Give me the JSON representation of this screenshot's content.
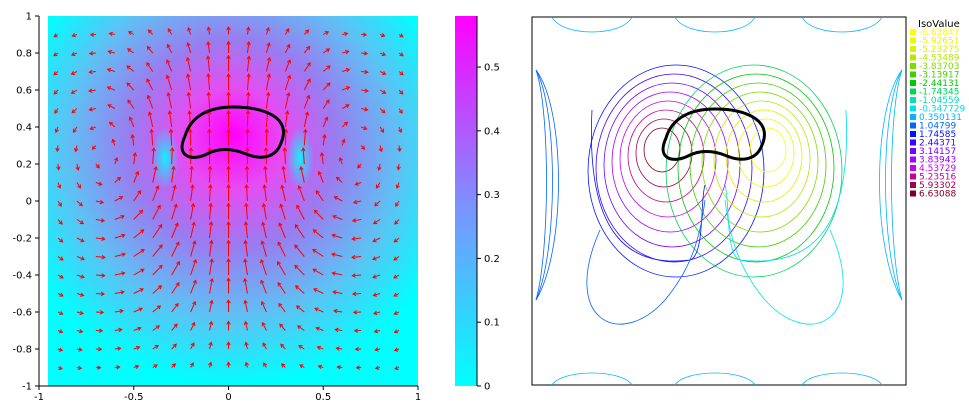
{
  "chart_data": [
    {
      "type": "heatmap",
      "title": "",
      "xlabel": "",
      "ylabel": "",
      "xlim": [
        -1,
        1
      ],
      "ylim": [
        -1,
        1
      ],
      "xticks": [
        "-1",
        "-0.5",
        "0",
        "0.5",
        "1"
      ],
      "yticks": [
        "1",
        "0.8",
        "0.6",
        "0.4",
        "0.2",
        "0",
        "-0.2",
        "-0.4",
        "-0.6",
        "-0.8",
        "-1"
      ],
      "colorbar": {
        "range": [
          0,
          0.58
        ],
        "ticks": [
          "0.5",
          "0.4",
          "0.3",
          "0.2",
          "0.1",
          "0"
        ],
        "colors": [
          "#00ffff",
          "#ff00ff"
        ]
      },
      "arrow_color": "#ff0000",
      "obstacle_color": "#000000",
      "grid": false
    },
    {
      "type": "contour",
      "title": "",
      "legend_placement": "right",
      "legend_title": "IsoValue",
      "levels": [
        {
          "label": "-6.62847",
          "color": "#ffff00"
        },
        {
          "label": "-5.92651",
          "color": "#f0f700"
        },
        {
          "label": "-5.23275",
          "color": "#dcf000"
        },
        {
          "label": "-4.53489",
          "color": "#b4e800"
        },
        {
          "label": "-3.83703",
          "color": "#7ddc00"
        },
        {
          "label": "-3.13917",
          "color": "#3fd000"
        },
        {
          "label": "-2.44131",
          "color": "#00c800"
        },
        {
          "label": "-1.74345",
          "color": "#00d25a"
        },
        {
          "label": "-1.04559",
          "color": "#00e0b4"
        },
        {
          "label": "-0.347729",
          "color": "#00e0f0"
        },
        {
          "label": "0.350131",
          "color": "#00b4ff"
        },
        {
          "label": "1.04799",
          "color": "#0064ff"
        },
        {
          "label": "1.74585",
          "color": "#0014ff"
        },
        {
          "label": "2.44371",
          "color": "#3c00ff"
        },
        {
          "label": "3.14157",
          "color": "#7800ff"
        },
        {
          "label": "3.83943",
          "color": "#a000ff"
        },
        {
          "label": "4.53729",
          "color": "#c800f0"
        },
        {
          "label": "5.23516",
          "color": "#c80096"
        },
        {
          "label": "5.93302",
          "color": "#a00050"
        },
        {
          "label": "6.63088",
          "color": "#80002a"
        }
      ]
    }
  ]
}
